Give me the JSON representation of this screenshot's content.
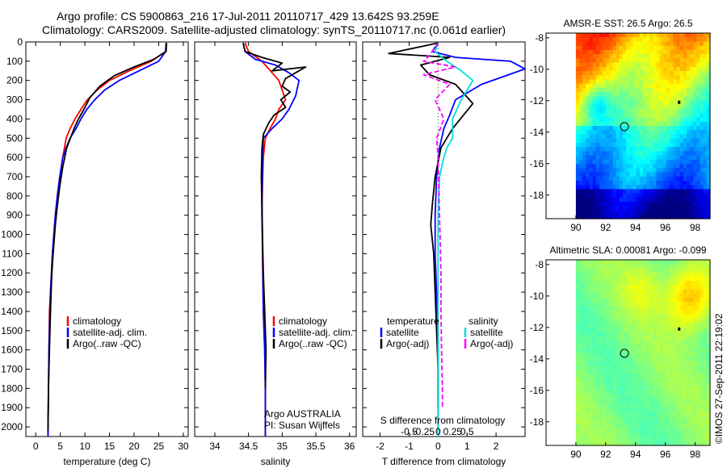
{
  "header": {
    "line1": "Argo profile: CS 5900863_216 17-Jul-2011 20110717_429 13.642S 93.259E",
    "line2": "Climatology: CARS2009. Satellite-adjusted climatology: synTS_20110717.nc (0.061d earlier)"
  },
  "stamp": "©IMOS 27-Sep-2011 22:19:02",
  "colors": {
    "climatology": "#ff0000",
    "satellite": "#0000ff",
    "argo": "#000000",
    "sat_s": "#00dddd",
    "argo_s": "#ff00ff"
  },
  "chart_data": [
    {
      "id": "temperature",
      "type": "line",
      "xlabel": "temperature (deg C)",
      "xlim": [
        -2,
        31
      ],
      "ylim": [
        2050,
        0
      ],
      "xticks": [
        0,
        5,
        10,
        15,
        20,
        25,
        30
      ],
      "xtick_labels": [
        "0",
        "5",
        "10",
        "15",
        "20",
        "25",
        "30"
      ],
      "yticks": [
        0,
        100,
        200,
        300,
        400,
        500,
        600,
        700,
        800,
        900,
        1000,
        1100,
        1200,
        1300,
        1400,
        1500,
        1600,
        1700,
        1800,
        1900,
        2000
      ],
      "ytick_labels": [
        "0",
        "100",
        "200",
        "300",
        "400",
        "500",
        "600",
        "700",
        "800",
        "900",
        "1000",
        "1100",
        "1200",
        "1300",
        "1400",
        "1500",
        "1600",
        "1700",
        "1800",
        "1900",
        "2000"
      ],
      "legend": [
        "climatology",
        "satellite-adj. clim.",
        "Argo(..raw -QC)"
      ],
      "series": [
        {
          "name": "climatology",
          "color": "#ff0000",
          "x": [
            26.5,
            26.4,
            23.5,
            19,
            15,
            12.5,
            10.5,
            9.2,
            8,
            7,
            6.2,
            5.5,
            4.9,
            4.4,
            4,
            3.7,
            3.4,
            3.2,
            3,
            2.8,
            2.7,
            2.6,
            2.5
          ],
          "y": [
            5,
            50,
            100,
            150,
            200,
            250,
            300,
            350,
            400,
            450,
            500,
            600,
            700,
            800,
            900,
            1000,
            1100,
            1200,
            1300,
            1400,
            1600,
            1800,
            2050
          ]
        },
        {
          "name": "satellite-adj. clim.",
          "color": "#0000ff",
          "x": [
            26.5,
            26.4,
            25,
            21,
            17,
            14,
            12,
            10.4,
            9.2,
            8.2,
            7,
            6.2,
            5.5,
            4.9,
            4.4,
            4,
            3.7,
            3.4,
            3.2,
            3,
            2.9,
            2.8,
            2.7,
            2.6,
            2.5
          ],
          "y": [
            5,
            50,
            100,
            150,
            200,
            250,
            300,
            350,
            400,
            450,
            500,
            550,
            600,
            700,
            800,
            900,
            1000,
            1100,
            1200,
            1300,
            1400,
            1500,
            1600,
            1800,
            2050
          ]
        },
        {
          "name": "Argo(..raw -QC)",
          "color": "#000000",
          "x": [
            26.6,
            26.5,
            24,
            20,
            16,
            13,
            11,
            9.8,
            8.7,
            7.8,
            6.3,
            5.5,
            4.9,
            4.4,
            4,
            3.7,
            3.4,
            3.2,
            3,
            2.8,
            2.6,
            2.5
          ],
          "y": [
            5,
            50,
            90,
            130,
            175,
            230,
            290,
            350,
            400,
            450,
            550,
            650,
            750,
            850,
            950,
            1050,
            1150,
            1250,
            1400,
            1600,
            1800,
            2020
          ]
        }
      ]
    },
    {
      "id": "salinity",
      "type": "line",
      "xlabel": "salinity",
      "xlim": [
        33.7,
        36.1
      ],
      "ylim": [
        2050,
        0
      ],
      "xticks": [
        34,
        34.5,
        35,
        35.5,
        36
      ],
      "xtick_labels": [
        "34",
        "34.5",
        "35",
        "35.5",
        "36"
      ],
      "legend": [
        "climatology",
        "satellite-adj. clim.",
        "Argo(..raw -QC)"
      ],
      "annotation_lines": [
        "Argo AUSTRALIA",
        "PI: Susan Wijffels"
      ],
      "series": [
        {
          "name": "climatology",
          "color": "#ff0000",
          "x": [
            34.45,
            34.5,
            34.7,
            34.95,
            35.05,
            34.95,
            34.9,
            34.82,
            34.75,
            34.72,
            34.71,
            34.7,
            34.71,
            34.72,
            34.74,
            34.75,
            34.75
          ],
          "y": [
            5,
            50,
            100,
            200,
            300,
            350,
            400,
            450,
            500,
            600,
            700,
            900,
            1200,
            1400,
            1600,
            1800,
            2050
          ]
        },
        {
          "name": "satellite-adj. clim.",
          "color": "#0000ff",
          "x": [
            34.42,
            34.45,
            34.6,
            34.9,
            35.1,
            35.25,
            35.2,
            35.1,
            35,
            34.85,
            34.72,
            34.71,
            34.7,
            34.71,
            34.72,
            34.74,
            34.75,
            34.75
          ],
          "y": [
            5,
            50,
            90,
            120,
            160,
            200,
            280,
            350,
            400,
            450,
            500,
            600,
            800,
            1100,
            1400,
            1600,
            1800,
            2050
          ]
        },
        {
          "name": "Argo(..raw -QC)",
          "color": "#000000",
          "x": [
            34.42,
            34.45,
            34.7,
            35.0,
            34.85,
            35.35,
            35.05,
            35.0,
            35.12,
            34.98,
            35.05,
            34.88,
            34.8,
            34.72,
            34.7,
            34.69,
            34.7,
            34.72,
            34.74,
            34.76,
            34.75
          ],
          "y": [
            5,
            50,
            80,
            110,
            150,
            130,
            190,
            230,
            260,
            300,
            340,
            380,
            420,
            480,
            550,
            700,
            900,
            1200,
            1400,
            1600,
            1800
          ]
        }
      ]
    },
    {
      "id": "difference",
      "type": "line",
      "xlabel": "T difference from climatology",
      "xlabel_top": "S difference from climatology",
      "xlim": [
        -2.6,
        3
      ],
      "ylim": [
        2050,
        0
      ],
      "xticks": [
        -2,
        -1,
        0,
        1,
        2
      ],
      "xtick_labels": [
        "-2",
        "-1",
        "0",
        "1",
        "2"
      ],
      "top_ticks": [
        -1,
        -0.5,
        0,
        0.5,
        1
      ],
      "top_tick_labels": [
        "-0.5",
        "-0.25",
        "0",
        "0.25",
        "0.5"
      ],
      "legend_headers": [
        "temperature",
        "salinity"
      ],
      "legend": [
        "satellite",
        "Argo(-adj)",
        "satellite",
        "Argo(-adj)"
      ],
      "series": [
        {
          "name": "temperature satellite",
          "color": "#0000ff",
          "x": [
            0,
            -0.2,
            0.6,
            2.5,
            3,
            1.5,
            0.6,
            0.4,
            0.2,
            0.05,
            -0.05,
            -0.1,
            -0.1,
            -0.05,
            0,
            0,
            0,
            0
          ],
          "y": [
            5,
            50,
            80,
            100,
            140,
            220,
            300,
            380,
            450,
            550,
            700,
            900,
            1100,
            1300,
            1500,
            1700,
            1900,
            2050
          ]
        },
        {
          "name": "temperature Argo(-adj)",
          "color": "#000000",
          "x": [
            0,
            -1.7,
            0.4,
            -0.6,
            -0.3,
            0.6,
            1.2,
            0.5,
            0.1,
            -0.1,
            -0.2,
            -0.25,
            -0.15,
            -0.1,
            -0.05,
            0,
            0
          ],
          "y": [
            5,
            60,
            80,
            120,
            170,
            220,
            320,
            450,
            550,
            700,
            850,
            950,
            1100,
            1300,
            1500,
            1700,
            1900
          ]
        },
        {
          "name": "salinity satellite",
          "color": "#00dddd",
          "x": [
            0,
            -0.1,
            0.3,
            0.8,
            1.2,
            0.8,
            0.5,
            0.5,
            0.3,
            0.2,
            0.05,
            0,
            0,
            0,
            0,
            0,
            0,
            0
          ],
          "y": [
            5,
            50,
            100,
            150,
            200,
            300,
            400,
            500,
            550,
            600,
            700,
            900,
            1100,
            1300,
            1500,
            1700,
            1900,
            2050
          ]
        },
        {
          "name": "salinity Argo(-adj)",
          "color": "#ff00ff",
          "x": [
            0,
            -0.3,
            -0.5,
            0.6,
            -0.5,
            0.4,
            -0.1,
            0.2,
            -0.05,
            0,
            0.05,
            0.1,
            0.1,
            0.12,
            0.15,
            0.15
          ],
          "y": [
            5,
            70,
            100,
            130,
            170,
            220,
            300,
            400,
            500,
            600,
            900,
            1200,
            1400,
            1600,
            1800,
            1900
          ]
        }
      ]
    },
    {
      "id": "sst-map",
      "type": "heatmap",
      "title": "AMSR-E SST: 26.5 Argo: 26.5",
      "xlim": [
        88,
        99
      ],
      "ylim": [
        -19.5,
        -7.7
      ],
      "xticks": [
        90,
        92,
        94,
        96,
        98
      ],
      "yticks": [
        -8,
        -10,
        -12,
        -14,
        -16,
        -18
      ],
      "colormap": "jet",
      "argo_position": [
        93.259,
        -13.642
      ]
    },
    {
      "id": "sla-map",
      "type": "heatmap",
      "title": "Altimetric SLA: 0.00081 Argo: -0.099",
      "xlim": [
        88,
        99
      ],
      "ylim": [
        -19.5,
        -7.7
      ],
      "xticks": [
        90,
        92,
        94,
        96,
        98
      ],
      "yticks": [
        -8,
        -10,
        -12,
        -14,
        -16,
        -18
      ],
      "colormap": "jet",
      "argo_position": [
        93.259,
        -13.642
      ]
    }
  ]
}
